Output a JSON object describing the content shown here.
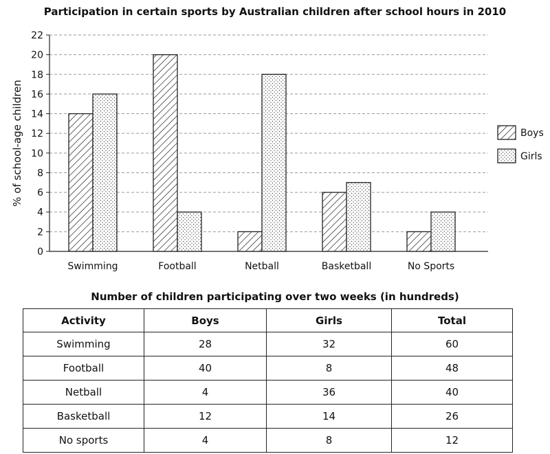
{
  "chart_data": {
    "type": "bar",
    "title": "Participation in certain sports by Australian children after school hours in 2010",
    "ylabel": "% of school-age children",
    "xlabel": "",
    "categories": [
      "Swimming",
      "Football",
      "Netball",
      "Basketball",
      "No Sports"
    ],
    "series": [
      {
        "name": "Boys",
        "values": [
          14,
          20,
          2,
          6,
          2
        ],
        "pattern": "diagonal-hatch"
      },
      {
        "name": "Girls",
        "values": [
          16,
          4,
          18,
          7,
          4
        ],
        "pattern": "dots"
      }
    ],
    "ylim": [
      0,
      22
    ],
    "yticks": [
      0,
      2,
      4,
      6,
      8,
      10,
      12,
      14,
      16,
      18,
      20,
      22
    ],
    "grid": "horizontal-dashed",
    "legend_position": "right"
  },
  "table": {
    "title": "Number of children participating over two weeks (in hundreds)",
    "headers": [
      "Activity",
      "Boys",
      "Girls",
      "Total"
    ],
    "rows": [
      [
        "Swimming",
        "28",
        "32",
        "60"
      ],
      [
        "Football",
        "40",
        "8",
        "48"
      ],
      [
        "Netball",
        "4",
        "36",
        "40"
      ],
      [
        "Basketball",
        "12",
        "14",
        "26"
      ],
      [
        "No sports",
        "4",
        "8",
        "12"
      ]
    ]
  }
}
